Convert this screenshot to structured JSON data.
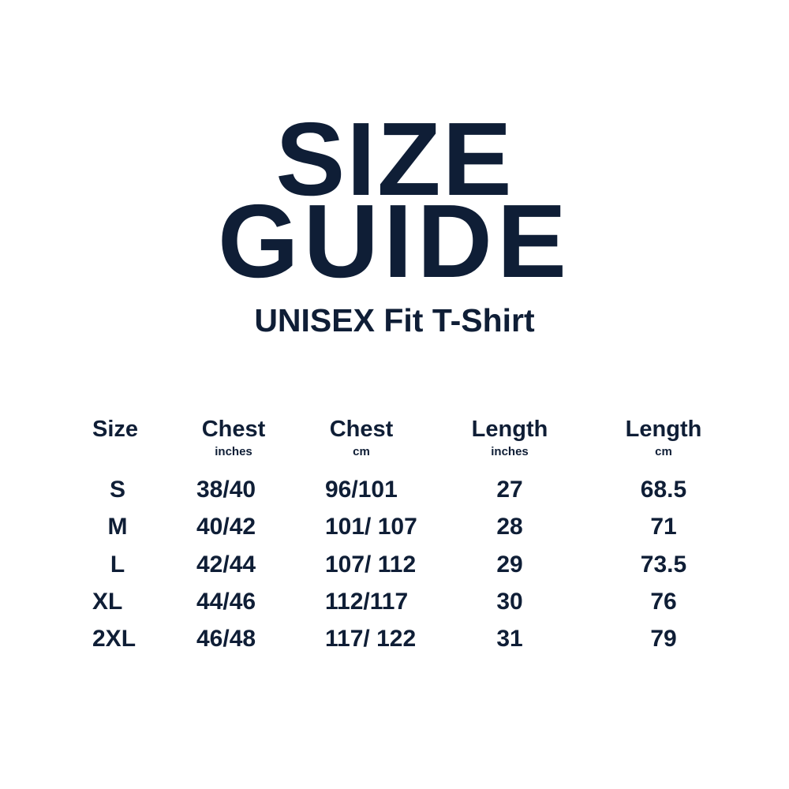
{
  "title": {
    "line1": "SIZE",
    "line2": "GUIDE"
  },
  "subtitle": "UNISEX Fit T-Shirt",
  "colors": {
    "text": "#0f1e36",
    "background": "#ffffff"
  },
  "table": {
    "columns": [
      {
        "label": "Size",
        "unit": ""
      },
      {
        "label": "Chest",
        "unit": "inches"
      },
      {
        "label": "Chest",
        "unit": "cm"
      },
      {
        "label": "Length",
        "unit": "inches"
      },
      {
        "label": "Length",
        "unit": "cm"
      }
    ],
    "rows": [
      [
        "S",
        "38/40",
        "96/101",
        "27",
        "68.5"
      ],
      [
        "M",
        "40/42",
        "101/ 107",
        "28",
        "71"
      ],
      [
        "L",
        "42/44",
        "107/ 112",
        "29",
        "73.5"
      ],
      [
        "XL",
        "44/46",
        "112/117",
        "30",
        "76"
      ],
      [
        "2XL",
        "46/48",
        "117/ 122",
        "31",
        "79"
      ]
    ]
  }
}
